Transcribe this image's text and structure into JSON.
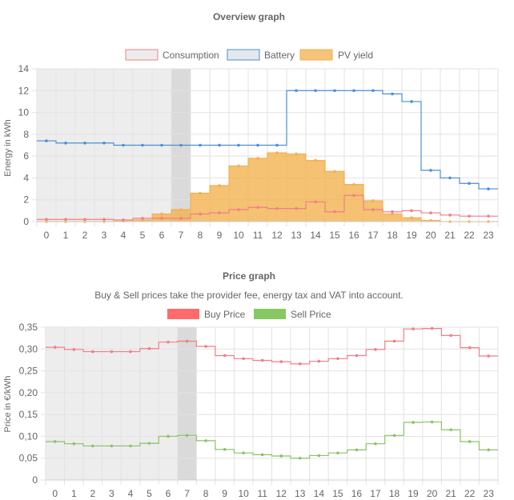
{
  "chart_data": [
    {
      "type": "line",
      "title": "Overview graph",
      "ylabel": "Energy in kWh",
      "xlabel": "",
      "ylim": [
        0,
        14
      ],
      "yticks": [
        "0",
        "2",
        "4",
        "6",
        "8",
        "10",
        "12",
        "14"
      ],
      "categories": [
        "0",
        "1",
        "2",
        "3",
        "4",
        "5",
        "6",
        "7",
        "8",
        "9",
        "10",
        "11",
        "12",
        "13",
        "14",
        "15",
        "16",
        "17",
        "18",
        "19",
        "20",
        "21",
        "22",
        "23"
      ],
      "past_hours_shaded": [
        0,
        7
      ],
      "current_hour": 7,
      "legend_position": "top",
      "series": [
        {
          "name": "Consumption",
          "style": "step-line",
          "color": "#f07f86",
          "values": [
            0.2,
            0.2,
            0.2,
            0.2,
            0.15,
            0.3,
            0.3,
            0.3,
            0.7,
            0.8,
            1.1,
            1.3,
            1.2,
            1.2,
            1.8,
            0.9,
            2.4,
            1.1,
            0.9,
            1.0,
            0.8,
            0.6,
            0.5,
            0.5
          ]
        },
        {
          "name": "Battery",
          "style": "step-line",
          "color": "#4a8fd4",
          "values": [
            7.4,
            7.2,
            7.2,
            7.2,
            7.0,
            7.0,
            7.0,
            7.0,
            7.0,
            7.0,
            7.0,
            7.0,
            7.0,
            12.0,
            12.0,
            12.0,
            12.0,
            12.0,
            11.7,
            11.0,
            4.7,
            4.0,
            3.5,
            3.0
          ]
        },
        {
          "name": "PV yield",
          "style": "step-area",
          "color": "#f2b14f",
          "values": [
            0.0,
            0.0,
            0.0,
            0.0,
            0.05,
            0.15,
            0.7,
            1.1,
            2.6,
            3.3,
            5.1,
            5.8,
            6.3,
            6.2,
            5.6,
            4.6,
            3.4,
            1.9,
            0.7,
            0.35,
            0.1,
            0.0,
            0.0,
            0.0
          ]
        }
      ]
    },
    {
      "type": "line",
      "title": "Price graph",
      "subtitle": "Buy & Sell prices take the provider fee, energy tax and VAT into account.",
      "ylabel": "Price in €/kWh",
      "xlabel": "",
      "ylim": [
        0,
        0.35
      ],
      "yticks": [
        "0",
        "0,05",
        "0,10",
        "0,15",
        "0,20",
        "0,25",
        "0,30",
        "0,35"
      ],
      "categories": [
        "0",
        "1",
        "2",
        "3",
        "4",
        "5",
        "6",
        "7",
        "8",
        "9",
        "10",
        "11",
        "12",
        "13",
        "14",
        "15",
        "16",
        "17",
        "18",
        "19",
        "20",
        "21",
        "22",
        "23"
      ],
      "past_hours_shaded": [
        0,
        7
      ],
      "current_hour": 7,
      "legend_position": "top",
      "series": [
        {
          "name": "Buy Price",
          "style": "step-line",
          "color": "#f07f86",
          "legend_color": "#ff6b6b",
          "values": [
            0.304,
            0.299,
            0.294,
            0.294,
            0.294,
            0.301,
            0.316,
            0.318,
            0.306,
            0.285,
            0.278,
            0.274,
            0.271,
            0.266,
            0.272,
            0.278,
            0.285,
            0.299,
            0.318,
            0.346,
            0.347,
            0.331,
            0.303,
            0.284
          ]
        },
        {
          "name": "Sell Price",
          "style": "step-line",
          "color": "#8cc267",
          "legend_color": "#88c863",
          "values": [
            0.088,
            0.083,
            0.078,
            0.078,
            0.078,
            0.084,
            0.1,
            0.102,
            0.09,
            0.07,
            0.062,
            0.058,
            0.055,
            0.05,
            0.056,
            0.062,
            0.069,
            0.083,
            0.102,
            0.132,
            0.133,
            0.115,
            0.088,
            0.069
          ]
        }
      ]
    }
  ]
}
